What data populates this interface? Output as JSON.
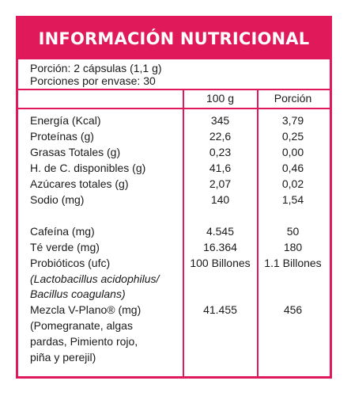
{
  "panel": {
    "title": "INFORMACIÓN NUTRICIONAL",
    "serving": "Porción: 2 cápsulas (1,1 g)",
    "servings_per_container": "Porciones por envase: 30",
    "columns": {
      "per100": "100 g",
      "portion": "Porción"
    },
    "nutrients": [
      {
        "name": "Energía (Kcal)",
        "per100": "345",
        "portion": "3,79"
      },
      {
        "name": "Proteínas (g)",
        "per100": "22,6",
        "portion": "0,25"
      },
      {
        "name": "Grasas Totales (g)",
        "per100": "0,23",
        "portion": "0,00"
      },
      {
        "name": "H. de C. disponibles (g)",
        "per100": "41,6",
        "portion": "0,46"
      },
      {
        "name": "Azúcares totales (g)",
        "per100": "2,07",
        "portion": "0,02"
      },
      {
        "name": "Sodio (mg)",
        "per100": "140",
        "portion": "1,54"
      }
    ],
    "extras": [
      {
        "name": "Cafeína (mg)",
        "per100": "4.545",
        "portion": "50"
      },
      {
        "name": "Té verde (mg)",
        "per100": "16.364",
        "portion": "180"
      },
      {
        "name": "Probióticos (ufc)",
        "per100": "100 Billones",
        "portion": "1.1 Billones"
      }
    ],
    "probiotic_strains_line1": "(Lactobacillus acidophilus/",
    "probiotic_strains_line2": "Bacillus coagulans)",
    "blend": {
      "name": "Mezcla V-Plano® (mg)",
      "per100": "41.455",
      "portion": "456"
    },
    "blend_detail": [
      "(Pomegranate, algas",
      "pardas, Pimiento rojo,",
      "piña y perejil)"
    ]
  },
  "colors": {
    "accent": "#e0195a",
    "text": "#1a1a1a"
  }
}
